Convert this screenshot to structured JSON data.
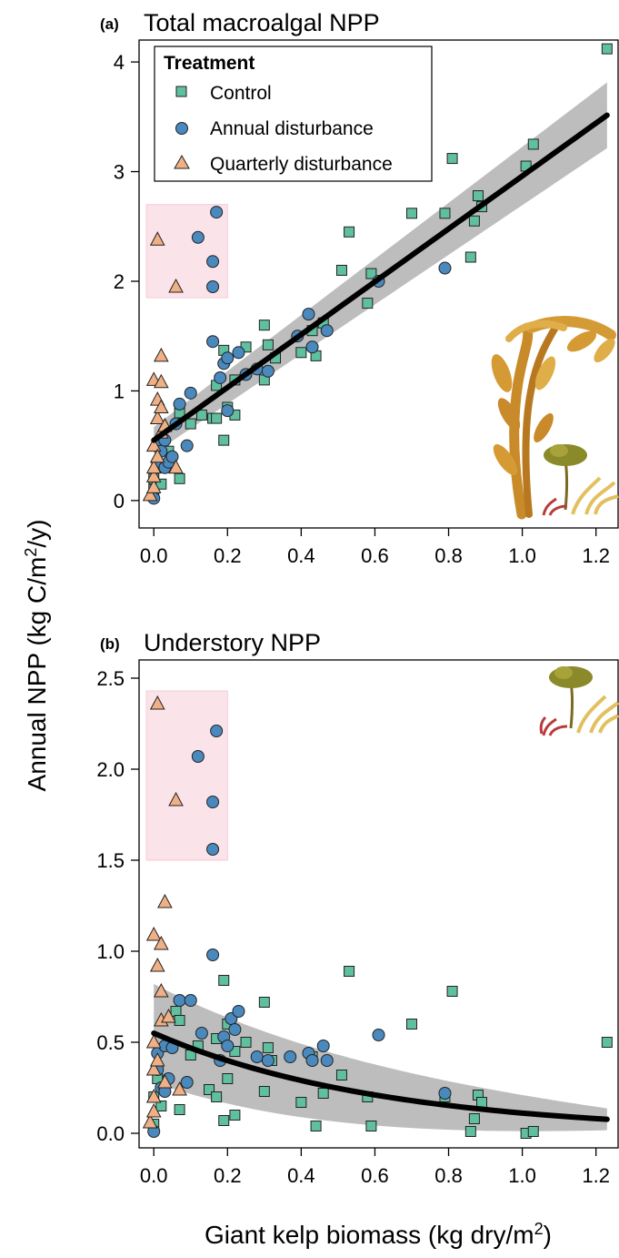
{
  "figure": {
    "shared_ylabel": "Annual NPP (kg C/m",
    "shared_ylabel_sup": "2",
    "shared_ylabel_tail": "/y)",
    "shared_xlabel": "Giant kelp biomass (kg dry/m",
    "shared_xlabel_sup": "2",
    "shared_xlabel_tail": ")"
  },
  "legend": {
    "title": "Treatment",
    "entries": [
      "Control",
      "Annual disturbance",
      "Quarterly disturbance"
    ],
    "placement": "top-left"
  },
  "colors": {
    "control": "#5fbf9e",
    "annual": "#4a89bd",
    "quarterly": "#f0b085",
    "fit_line": "#000000",
    "ci_band": "#bdbdbd",
    "highlight_box": "#fbe3ea"
  },
  "icons": [
    "giant-kelp-icon",
    "understory-algae-icon"
  ],
  "chart_data": [
    {
      "type": "scatter",
      "panel_tag": "(a)",
      "title": "Total macroalgal NPP",
      "xlim": [
        -0.04,
        1.26
      ],
      "ylim": [
        -0.25,
        4.2
      ],
      "x_ticks": [
        "0.0",
        "0.2",
        "0.4",
        "0.6",
        "0.8",
        "1.0",
        "1.2"
      ],
      "x_tick_values": [
        0,
        0.2,
        0.4,
        0.6,
        0.8,
        1.0,
        1.2
      ],
      "y_ticks": [
        "0",
        "1",
        "2",
        "3",
        "4"
      ],
      "y_tick_values": [
        0,
        1,
        2,
        3,
        4
      ],
      "grid": false,
      "highlight_box": {
        "x": [
          -0.02,
          0.2
        ],
        "y": [
          1.85,
          2.7
        ]
      },
      "series": [
        {
          "name": "Control",
          "marker": "square",
          "points": [
            [
              0.0,
              0.1
            ],
            [
              0.0,
              0.2
            ],
            [
              0.01,
              0.3
            ],
            [
              0.02,
              0.15
            ],
            [
              0.04,
              0.45
            ],
            [
              0.07,
              0.2
            ],
            [
              0.07,
              0.8
            ],
            [
              0.1,
              0.7
            ],
            [
              0.13,
              0.78
            ],
            [
              0.16,
              0.75
            ],
            [
              0.17,
              0.75
            ],
            [
              0.17,
              1.05
            ],
            [
              0.19,
              0.55
            ],
            [
              0.19,
              1.37
            ],
            [
              0.2,
              0.85
            ],
            [
              0.22,
              0.78
            ],
            [
              0.22,
              1.1
            ],
            [
              0.25,
              1.4
            ],
            [
              0.3,
              1.1
            ],
            [
              0.3,
              1.6
            ],
            [
              0.31,
              1.42
            ],
            [
              0.33,
              1.3
            ],
            [
              0.4,
              1.35
            ],
            [
              0.43,
              1.55
            ],
            [
              0.44,
              1.32
            ],
            [
              0.46,
              1.62
            ],
            [
              0.51,
              2.1
            ],
            [
              0.53,
              2.45
            ],
            [
              0.58,
              1.8
            ],
            [
              0.59,
              2.07
            ],
            [
              0.7,
              2.62
            ],
            [
              0.79,
              2.62
            ],
            [
              0.81,
              3.12
            ],
            [
              0.86,
              2.22
            ],
            [
              0.87,
              2.55
            ],
            [
              0.88,
              2.78
            ],
            [
              0.89,
              2.68
            ],
            [
              1.01,
              3.05
            ],
            [
              1.03,
              3.25
            ],
            [
              1.23,
              4.12
            ]
          ]
        },
        {
          "name": "Annual disturbance",
          "marker": "circle",
          "points": [
            [
              0.0,
              0.02
            ],
            [
              0.01,
              0.35
            ],
            [
              0.01,
              0.5
            ],
            [
              0.02,
              0.45
            ],
            [
              0.03,
              0.55
            ],
            [
              0.03,
              0.3
            ],
            [
              0.04,
              0.35
            ],
            [
              0.05,
              0.4
            ],
            [
              0.06,
              0.7
            ],
            [
              0.07,
              0.88
            ],
            [
              0.09,
              0.5
            ],
            [
              0.1,
              0.98
            ],
            [
              0.12,
              2.4
            ],
            [
              0.16,
              1.45
            ],
            [
              0.16,
              1.95
            ],
            [
              0.16,
              2.18
            ],
            [
              0.17,
              2.63
            ],
            [
              0.18,
              1.12
            ],
            [
              0.19,
              1.25
            ],
            [
              0.2,
              1.3
            ],
            [
              0.2,
              0.82
            ],
            [
              0.23,
              1.35
            ],
            [
              0.25,
              1.15
            ],
            [
              0.28,
              1.2
            ],
            [
              0.31,
              1.18
            ],
            [
              0.39,
              1.5
            ],
            [
              0.42,
              1.7
            ],
            [
              0.43,
              1.4
            ],
            [
              0.47,
              1.55
            ],
            [
              0.61,
              2.0
            ],
            [
              0.79,
              2.12
            ]
          ]
        },
        {
          "name": "Quarterly disturbance",
          "marker": "triangle",
          "points": [
            [
              -0.01,
              0.05
            ],
            [
              0.0,
              0.12
            ],
            [
              0.0,
              0.22
            ],
            [
              0.0,
              0.3
            ],
            [
              0.0,
              0.5
            ],
            [
              0.0,
              1.1
            ],
            [
              0.01,
              2.38
            ],
            [
              0.01,
              0.92
            ],
            [
              0.01,
              0.75
            ],
            [
              0.01,
              0.4
            ],
            [
              0.02,
              1.08
            ],
            [
              0.02,
              0.85
            ],
            [
              0.02,
              0.62
            ],
            [
              0.02,
              1.32
            ],
            [
              0.03,
              0.68
            ],
            [
              0.06,
              1.95
            ],
            [
              0.06,
              0.3
            ]
          ]
        }
      ],
      "fit": {
        "type": "linear",
        "intercept": 0.55,
        "slope": 2.41,
        "ci_halfwidth_start": 0.12,
        "ci_halfwidth_end": 0.3
      }
    },
    {
      "type": "scatter",
      "panel_tag": "(b)",
      "title": "Understory NPP",
      "xlim": [
        -0.04,
        1.26
      ],
      "ylim": [
        -0.08,
        2.6
      ],
      "x_ticks": [
        "0.0",
        "0.2",
        "0.4",
        "0.6",
        "0.8",
        "1.0",
        "1.2"
      ],
      "x_tick_values": [
        0,
        0.2,
        0.4,
        0.6,
        0.8,
        1.0,
        1.2
      ],
      "y_ticks": [
        "0.0",
        "0.5",
        "1.0",
        "1.5",
        "2.0",
        "2.5"
      ],
      "y_tick_values": [
        0,
        0.5,
        1.0,
        1.5,
        2.0,
        2.5
      ],
      "grid": false,
      "highlight_box": {
        "x": [
          -0.02,
          0.2
        ],
        "y": [
          1.5,
          2.43
        ]
      },
      "series": [
        {
          "name": "Control",
          "marker": "square",
          "points": [
            [
              0.0,
              0.05
            ],
            [
              0.0,
              0.2
            ],
            [
              0.01,
              0.3
            ],
            [
              0.02,
              0.15
            ],
            [
              0.06,
              0.67
            ],
            [
              0.07,
              0.13
            ],
            [
              0.07,
              0.62
            ],
            [
              0.1,
              0.43
            ],
            [
              0.12,
              0.48
            ],
            [
              0.15,
              0.24
            ],
            [
              0.17,
              0.52
            ],
            [
              0.17,
              0.2
            ],
            [
              0.19,
              0.07
            ],
            [
              0.19,
              0.84
            ],
            [
              0.2,
              0.3
            ],
            [
              0.2,
              0.6
            ],
            [
              0.22,
              0.45
            ],
            [
              0.22,
              0.1
            ],
            [
              0.25,
              0.5
            ],
            [
              0.3,
              0.23
            ],
            [
              0.3,
              0.72
            ],
            [
              0.31,
              0.47
            ],
            [
              0.32,
              0.4
            ],
            [
              0.4,
              0.17
            ],
            [
              0.43,
              0.42
            ],
            [
              0.44,
              0.04
            ],
            [
              0.46,
              0.22
            ],
            [
              0.51,
              0.32
            ],
            [
              0.53,
              0.89
            ],
            [
              0.58,
              0.2
            ],
            [
              0.59,
              0.04
            ],
            [
              0.7,
              0.6
            ],
            [
              0.79,
              0.2
            ],
            [
              0.81,
              0.78
            ],
            [
              0.86,
              0.01
            ],
            [
              0.87,
              0.08
            ],
            [
              0.88,
              0.21
            ],
            [
              0.89,
              0.17
            ],
            [
              1.01,
              0.0
            ],
            [
              1.03,
              0.01
            ],
            [
              1.23,
              0.5
            ]
          ]
        },
        {
          "name": "Annual disturbance",
          "marker": "circle",
          "points": [
            [
              0.0,
              0.01
            ],
            [
              0.01,
              0.35
            ],
            [
              0.01,
              0.44
            ],
            [
              0.02,
              0.25
            ],
            [
              0.03,
              0.48
            ],
            [
              0.03,
              0.23
            ],
            [
              0.04,
              0.3
            ],
            [
              0.05,
              0.47
            ],
            [
              0.07,
              0.73
            ],
            [
              0.09,
              0.28
            ],
            [
              0.1,
              0.73
            ],
            [
              0.12,
              2.07
            ],
            [
              0.13,
              0.55
            ],
            [
              0.16,
              0.98
            ],
            [
              0.16,
              1.56
            ],
            [
              0.16,
              1.82
            ],
            [
              0.17,
              2.21
            ],
            [
              0.18,
              0.4
            ],
            [
              0.19,
              0.53
            ],
            [
              0.2,
              0.48
            ],
            [
              0.21,
              0.63
            ],
            [
              0.22,
              0.57
            ],
            [
              0.23,
              0.67
            ],
            [
              0.28,
              0.42
            ],
            [
              0.31,
              0.4
            ],
            [
              0.37,
              0.42
            ],
            [
              0.42,
              0.44
            ],
            [
              0.43,
              0.4
            ],
            [
              0.46,
              0.48
            ],
            [
              0.47,
              0.4
            ],
            [
              0.61,
              0.54
            ],
            [
              0.79,
              0.22
            ]
          ]
        },
        {
          "name": "Quarterly disturbance",
          "marker": "triangle",
          "points": [
            [
              -0.01,
              0.06
            ],
            [
              0.0,
              0.12
            ],
            [
              0.0,
              0.2
            ],
            [
              0.0,
              0.35
            ],
            [
              0.0,
              0.5
            ],
            [
              0.0,
              1.09
            ],
            [
              0.01,
              2.36
            ],
            [
              0.01,
              0.92
            ],
            [
              0.01,
              0.4
            ],
            [
              0.02,
              1.04
            ],
            [
              0.02,
              0.78
            ],
            [
              0.02,
              0.62
            ],
            [
              0.03,
              1.27
            ],
            [
              0.03,
              0.28
            ],
            [
              0.04,
              0.64
            ],
            [
              0.06,
              1.83
            ],
            [
              0.07,
              0.24
            ]
          ]
        }
      ],
      "fit": {
        "type": "exponential",
        "a": 0.55,
        "b": -1.6,
        "ci_halfwidth_start": 0.27,
        "ci_halfwidth_end": 0.06
      }
    }
  ]
}
